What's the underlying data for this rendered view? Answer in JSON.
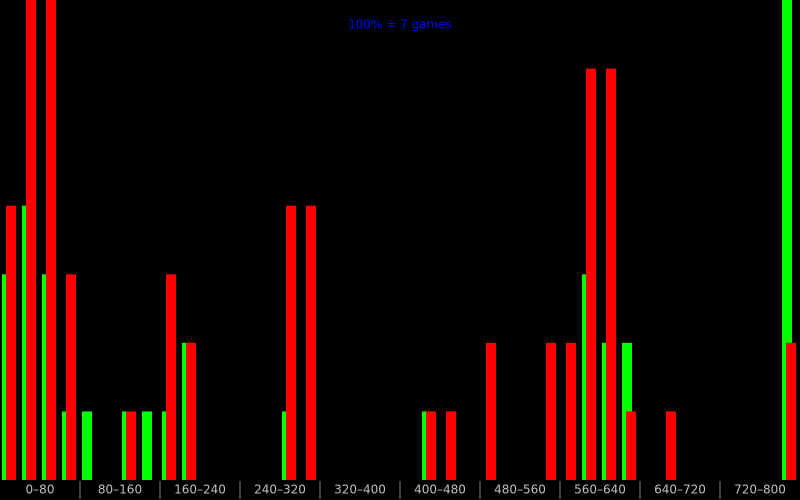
{
  "chart_data": {
    "type": "histogram",
    "title": "100% = 7 games",
    "bins": [
      0,
      20,
      40,
      60,
      80,
      100,
      120,
      140,
      160,
      180,
      200,
      220,
      240,
      260,
      280,
      300,
      320,
      340,
      360,
      380,
      400,
      420,
      440,
      460,
      480,
      500,
      520,
      540,
      560,
      580,
      600,
      620,
      640,
      660,
      680,
      700,
      720,
      740,
      760,
      780,
      800
    ],
    "series": [
      {
        "color": "#00ff00",
        "values": [
          3,
          4,
          3,
          1,
          1,
          0,
          1,
          1,
          1,
          2,
          0,
          0,
          0,
          0,
          1,
          0,
          0,
          0,
          0,
          0,
          0,
          1,
          0,
          0,
          0,
          0,
          0,
          0,
          0,
          3,
          2,
          2,
          0,
          0,
          0,
          0,
          0,
          0,
          0,
          7
        ]
      },
      {
        "color": "#ff0000",
        "values": [
          4,
          7,
          7,
          3,
          0,
          0,
          1,
          0,
          3,
          2,
          0,
          0,
          0,
          0,
          4,
          4,
          0,
          0,
          0,
          0,
          0,
          1,
          1,
          0,
          2,
          0,
          0,
          2,
          2,
          6,
          6,
          1,
          0,
          1,
          0,
          0,
          0,
          0,
          0,
          2
        ]
      }
    ],
    "xlim": [
      0,
      800
    ],
    "ylim": [
      0,
      7
    ],
    "xticks": [
      {
        "value": 40,
        "label": "0–80"
      },
      {
        "value": 120,
        "label": "80–160"
      },
      {
        "value": 200,
        "label": "160–240"
      },
      {
        "value": 280,
        "label": "240–320"
      },
      {
        "value": 360,
        "label": "320–400"
      },
      {
        "value": 440,
        "label": "400–480"
      },
      {
        "value": 520,
        "label": "480–560"
      },
      {
        "value": 600,
        "label": "560–640"
      },
      {
        "value": 680,
        "label": "640–720"
      },
      {
        "value": 760,
        "label": "720–800"
      }
    ]
  }
}
